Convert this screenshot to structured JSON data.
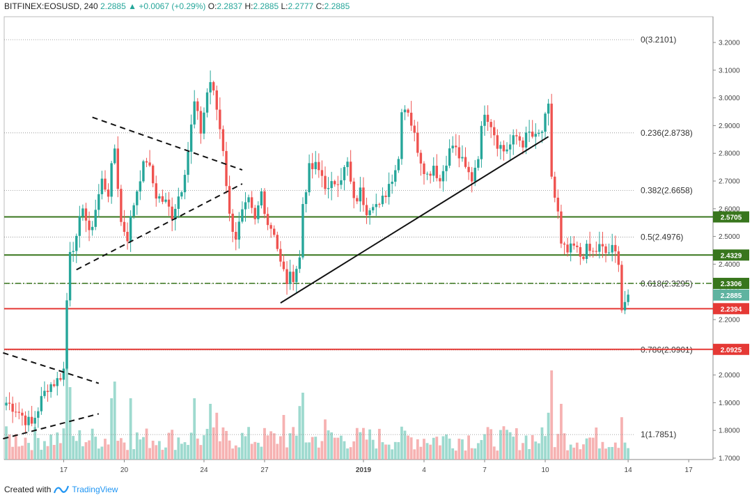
{
  "header": {
    "symbol": "BITFINEX:EOSUSD, 240",
    "last": "2.2885",
    "change": "▲ +0.0067 (+0.29%)",
    "o_label": "O:",
    "o_val": "2.2837",
    "h_label": "H:",
    "h_val": "2.2885",
    "l_label": "L:",
    "l_val": "2.2777",
    "c_label": "C:",
    "c_val": "2.2885"
  },
  "footer": {
    "created_with": "Created with",
    "brand": "TradingView"
  },
  "colors": {
    "up": "#26a69a",
    "down": "#ef5350",
    "support": "#38761d",
    "resistance": "#e53935"
  },
  "chart_data": {
    "type": "candlestick",
    "ylim": [
      1.69,
      3.25
    ],
    "y_ticks": [
      "3.2000",
      "3.1000",
      "3.0000",
      "2.9000",
      "2.8000",
      "2.7000",
      "2.6000",
      "2.5000",
      "2.4000",
      "2.3000",
      "2.2000",
      "2.1000",
      "2.0000",
      "1.9000",
      "1.8000",
      "1.7000"
    ],
    "x_ticks": [
      {
        "label": "17",
        "idx": 18
      },
      {
        "label": "20",
        "idx": 37
      },
      {
        "label": "24",
        "idx": 62
      },
      {
        "label": "27",
        "idx": 81
      },
      {
        "label": "2019",
        "idx": 112
      },
      {
        "label": "4",
        "idx": 131
      },
      {
        "label": "7",
        "idx": 150
      },
      {
        "label": "10",
        "idx": 169
      },
      {
        "label": "14",
        "idx": 195
      },
      {
        "label": "17",
        "idx": 214
      }
    ],
    "fib_levels": [
      {
        "label": "0(3.2101)",
        "value": 3.2101
      },
      {
        "label": "0.236(2.8738)",
        "value": 2.8738
      },
      {
        "label": "0.382(2.6658)",
        "value": 2.6658
      },
      {
        "label": "0.5(2.4976)",
        "value": 2.4976
      },
      {
        "label": "0.618(2.3295)",
        "value": 2.3295
      },
      {
        "label": "0.786(2.0901)",
        "value": 2.0901
      },
      {
        "label": "1(1.7851)",
        "value": 1.7851
      }
    ],
    "hlines": [
      {
        "label": "2.5705",
        "value": 2.5705,
        "color": "#38761d",
        "style": "solid"
      },
      {
        "label": "2.4329",
        "value": 2.4329,
        "color": "#38761d",
        "style": "solid"
      },
      {
        "label": "2.3306",
        "value": 2.3306,
        "color": "#38761d",
        "style": "dash"
      },
      {
        "label": "2.2394",
        "value": 2.2394,
        "color": "#e53935",
        "style": "solid"
      },
      {
        "label": "2.0925",
        "value": 2.0925,
        "color": "#e53935",
        "style": "solid"
      }
    ],
    "last_price": {
      "label": "2.2885",
      "value": 2.2885
    },
    "trendlines": [
      {
        "from": [
          -1,
          2.08
        ],
        "to": [
          29,
          1.97
        ],
        "dash": true
      },
      {
        "from": [
          -1,
          1.77
        ],
        "to": [
          29,
          1.86
        ],
        "dash": true
      },
      {
        "from": [
          27,
          2.93
        ],
        "to": [
          74,
          2.74
        ],
        "dash": true
      },
      {
        "from": [
          22,
          2.38
        ],
        "to": [
          74,
          2.69
        ],
        "dash": true
      },
      {
        "from": [
          86,
          2.26
        ],
        "to": [
          170,
          2.86
        ],
        "dash": false
      }
    ],
    "anchors": [
      {
        "i": 0,
        "p": 1.9
      },
      {
        "i": 3,
        "p": 1.88
      },
      {
        "i": 6,
        "p": 1.84
      },
      {
        "i": 8,
        "p": 1.82
      },
      {
        "i": 11,
        "p": 1.91
      },
      {
        "i": 13,
        "p": 1.96
      },
      {
        "i": 16,
        "p": 1.98
      },
      {
        "i": 18,
        "p": 2.02
      },
      {
        "i": 19,
        "p": 2.27
      },
      {
        "i": 20,
        "p": 2.46
      },
      {
        "i": 22,
        "p": 2.48
      },
      {
        "i": 24,
        "p": 2.62
      },
      {
        "i": 26,
        "p": 2.5
      },
      {
        "i": 28,
        "p": 2.6
      },
      {
        "i": 30,
        "p": 2.7
      },
      {
        "i": 32,
        "p": 2.66
      },
      {
        "i": 34,
        "p": 2.82
      },
      {
        "i": 36,
        "p": 2.55
      },
      {
        "i": 38,
        "p": 2.5
      },
      {
        "i": 40,
        "p": 2.62
      },
      {
        "i": 42,
        "p": 2.72
      },
      {
        "i": 44,
        "p": 2.78
      },
      {
        "i": 47,
        "p": 2.65
      },
      {
        "i": 50,
        "p": 2.62
      },
      {
        "i": 52,
        "p": 2.58
      },
      {
        "i": 55,
        "p": 2.68
      },
      {
        "i": 57,
        "p": 2.81
      },
      {
        "i": 59,
        "p": 2.98
      },
      {
        "i": 61,
        "p": 2.88
      },
      {
        "i": 63,
        "p": 3.02
      },
      {
        "i": 64,
        "p": 3.06
      },
      {
        "i": 66,
        "p": 2.96
      },
      {
        "i": 68,
        "p": 2.82
      },
      {
        "i": 70,
        "p": 2.57
      },
      {
        "i": 72,
        "p": 2.5
      },
      {
        "i": 74,
        "p": 2.58
      },
      {
        "i": 76,
        "p": 2.62
      },
      {
        "i": 78,
        "p": 2.55
      },
      {
        "i": 80,
        "p": 2.66
      },
      {
        "i": 82,
        "p": 2.55
      },
      {
        "i": 84,
        "p": 2.52
      },
      {
        "i": 86,
        "p": 2.4
      },
      {
        "i": 88,
        "p": 2.34
      },
      {
        "i": 90,
        "p": 2.36
      },
      {
        "i": 92,
        "p": 2.42
      },
      {
        "i": 93,
        "p": 2.62
      },
      {
        "i": 95,
        "p": 2.74
      },
      {
        "i": 97,
        "p": 2.75
      },
      {
        "i": 99,
        "p": 2.72
      },
      {
        "i": 101,
        "p": 2.66
      },
      {
        "i": 103,
        "p": 2.7
      },
      {
        "i": 105,
        "p": 2.72
      },
      {
        "i": 107,
        "p": 2.76
      },
      {
        "i": 109,
        "p": 2.62
      },
      {
        "i": 111,
        "p": 2.66
      },
      {
        "i": 113,
        "p": 2.6
      },
      {
        "i": 115,
        "p": 2.63
      },
      {
        "i": 117,
        "p": 2.6
      },
      {
        "i": 119,
        "p": 2.66
      },
      {
        "i": 121,
        "p": 2.72
      },
      {
        "i": 123,
        "p": 2.78
      },
      {
        "i": 124,
        "p": 2.97
      },
      {
        "i": 126,
        "p": 2.96
      },
      {
        "i": 128,
        "p": 2.86
      },
      {
        "i": 130,
        "p": 2.78
      },
      {
        "i": 132,
        "p": 2.72
      },
      {
        "i": 134,
        "p": 2.76
      },
      {
        "i": 136,
        "p": 2.7
      },
      {
        "i": 138,
        "p": 2.78
      },
      {
        "i": 140,
        "p": 2.83
      },
      {
        "i": 142,
        "p": 2.79
      },
      {
        "i": 144,
        "p": 2.74
      },
      {
        "i": 146,
        "p": 2.71
      },
      {
        "i": 148,
        "p": 2.8
      },
      {
        "i": 150,
        "p": 2.96
      },
      {
        "i": 152,
        "p": 2.91
      },
      {
        "i": 154,
        "p": 2.84
      },
      {
        "i": 156,
        "p": 2.81
      },
      {
        "i": 158,
        "p": 2.83
      },
      {
        "i": 160,
        "p": 2.86
      },
      {
        "i": 162,
        "p": 2.84
      },
      {
        "i": 164,
        "p": 2.87
      },
      {
        "i": 166,
        "p": 2.85
      },
      {
        "i": 168,
        "p": 2.88
      },
      {
        "i": 170,
        "p": 2.96
      },
      {
        "i": 171,
        "p": 2.72
      },
      {
        "i": 172,
        "p": 2.64
      },
      {
        "i": 173,
        "p": 2.58
      },
      {
        "i": 174,
        "p": 2.46
      },
      {
        "i": 176,
        "p": 2.44
      },
      {
        "i": 178,
        "p": 2.46
      },
      {
        "i": 180,
        "p": 2.43
      },
      {
        "i": 182,
        "p": 2.45
      },
      {
        "i": 184,
        "p": 2.44
      },
      {
        "i": 186,
        "p": 2.46
      },
      {
        "i": 188,
        "p": 2.44
      },
      {
        "i": 190,
        "p": 2.45
      },
      {
        "i": 192,
        "p": 2.42
      },
      {
        "i": 193,
        "p": 2.24
      },
      {
        "i": 195,
        "p": 2.29
      }
    ],
    "volume_spikes": [
      {
        "i": 19,
        "v": 1.0
      },
      {
        "i": 20,
        "v": 0.65
      },
      {
        "i": 33,
        "v": 0.55
      },
      {
        "i": 34,
        "v": 0.7
      },
      {
        "i": 39,
        "v": 0.55
      },
      {
        "i": 59,
        "v": 0.55
      },
      {
        "i": 64,
        "v": 0.5
      },
      {
        "i": 66,
        "v": 0.42
      },
      {
        "i": 87,
        "v": 0.4
      },
      {
        "i": 92,
        "v": 0.48
      },
      {
        "i": 93,
        "v": 0.6
      },
      {
        "i": 100,
        "v": 0.36
      },
      {
        "i": 170,
        "v": 0.42
      },
      {
        "i": 171,
        "v": 0.8
      },
      {
        "i": 174,
        "v": 0.5
      },
      {
        "i": 193,
        "v": 0.38
      }
    ],
    "volume_max_px": 160
  }
}
